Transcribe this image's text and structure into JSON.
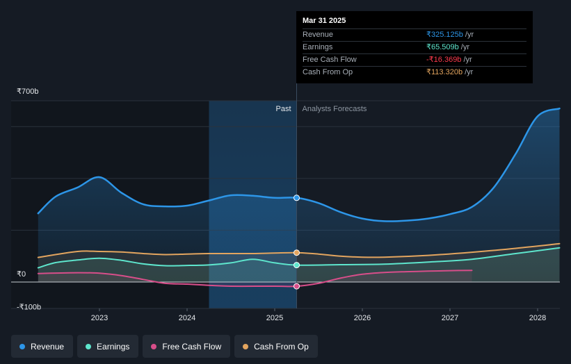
{
  "chart_data": {
    "type": "area",
    "y_unit": "₹ billions",
    "ylim": [
      -100,
      700
    ],
    "y_tick_labels": [
      {
        "value": 700,
        "label": "₹700b"
      },
      {
        "value": 0,
        "label": "₹0"
      },
      {
        "value": -100,
        "label": "-₹100b"
      }
    ],
    "xlim": [
      2022.3,
      2028.25
    ],
    "x_tick_labels": [
      {
        "value": 2023.0,
        "label": "2023"
      },
      {
        "value": 2024.0,
        "label": "2024"
      },
      {
        "value": 2025.0,
        "label": "2025"
      },
      {
        "value": 2026.0,
        "label": "2026"
      },
      {
        "value": 2027.0,
        "label": "2027"
      },
      {
        "value": 2028.0,
        "label": "2028"
      }
    ],
    "region_labels": {
      "past": "Past",
      "forecast": "Analysts Forecasts"
    },
    "highlight_range": [
      2024.25,
      2025.25
    ],
    "divider_x": 2025.25,
    "series": [
      {
        "name": "Revenue",
        "color": "#2d96e8",
        "points": [
          [
            2022.3,
            265
          ],
          [
            2022.5,
            330
          ],
          [
            2022.75,
            365
          ],
          [
            2023.0,
            405
          ],
          [
            2023.25,
            345
          ],
          [
            2023.5,
            300
          ],
          [
            2023.75,
            292
          ],
          [
            2024.0,
            295
          ],
          [
            2024.25,
            315
          ],
          [
            2024.5,
            335
          ],
          [
            2024.75,
            333
          ],
          [
            2025.0,
            325
          ],
          [
            2025.25,
            325.1
          ],
          [
            2025.5,
            305
          ],
          [
            2025.75,
            270
          ],
          [
            2026.0,
            245
          ],
          [
            2026.25,
            235
          ],
          [
            2026.5,
            237
          ],
          [
            2026.75,
            245
          ],
          [
            2027.0,
            262
          ],
          [
            2027.25,
            290
          ],
          [
            2027.5,
            365
          ],
          [
            2027.75,
            495
          ],
          [
            2028.0,
            640
          ],
          [
            2028.25,
            670
          ]
        ]
      },
      {
        "name": "Earnings",
        "color": "#5ee6cd",
        "points": [
          [
            2022.3,
            55
          ],
          [
            2022.5,
            75
          ],
          [
            2022.75,
            85
          ],
          [
            2023.0,
            92
          ],
          [
            2023.25,
            84
          ],
          [
            2023.5,
            70
          ],
          [
            2023.75,
            63
          ],
          [
            2024.0,
            64
          ],
          [
            2024.25,
            66
          ],
          [
            2024.5,
            74
          ],
          [
            2024.75,
            88
          ],
          [
            2025.0,
            74
          ],
          [
            2025.25,
            65.5
          ],
          [
            2025.75,
            67
          ],
          [
            2026.25,
            69
          ],
          [
            2026.75,
            77
          ],
          [
            2027.25,
            88
          ],
          [
            2027.75,
            110
          ],
          [
            2028.25,
            132
          ]
        ]
      },
      {
        "name": "Free Cash Flow",
        "color": "#d84e8a",
        "points": [
          [
            2022.3,
            33
          ],
          [
            2022.75,
            36
          ],
          [
            2023.0,
            34
          ],
          [
            2023.25,
            25
          ],
          [
            2023.5,
            10
          ],
          [
            2023.75,
            -5
          ],
          [
            2024.0,
            -8
          ],
          [
            2024.25,
            -13
          ],
          [
            2024.5,
            -16
          ],
          [
            2025.0,
            -16
          ],
          [
            2025.25,
            -16.4
          ],
          [
            2025.5,
            -5
          ],
          [
            2025.75,
            15
          ],
          [
            2026.0,
            30
          ],
          [
            2026.25,
            37
          ],
          [
            2026.5,
            40
          ],
          [
            2026.75,
            42
          ],
          [
            2027.0,
            44
          ],
          [
            2027.25,
            45
          ]
        ]
      },
      {
        "name": "Cash From Op",
        "color": "#e3a55f",
        "points": [
          [
            2022.3,
            95
          ],
          [
            2022.75,
            118
          ],
          [
            2023.0,
            118
          ],
          [
            2023.25,
            116
          ],
          [
            2023.5,
            110
          ],
          [
            2023.75,
            106
          ],
          [
            2024.0,
            108
          ],
          [
            2024.25,
            110
          ],
          [
            2024.5,
            110
          ],
          [
            2024.75,
            110
          ],
          [
            2025.0,
            112
          ],
          [
            2025.25,
            113.3
          ],
          [
            2025.5,
            108
          ],
          [
            2025.75,
            100
          ],
          [
            2026.0,
            96
          ],
          [
            2026.25,
            96
          ],
          [
            2026.75,
            103
          ],
          [
            2027.25,
            115
          ],
          [
            2027.75,
            130
          ],
          [
            2028.25,
            148
          ]
        ]
      }
    ]
  },
  "tooltip": {
    "date": "Mar 31 2025",
    "rows": [
      {
        "label": "Revenue",
        "value": "₹325.125b",
        "unit": "/yr",
        "color": "#2d96e8"
      },
      {
        "label": "Earnings",
        "value": "₹65.509b",
        "unit": "/yr",
        "color": "#5ee6cd"
      },
      {
        "label": "Free Cash Flow",
        "value": "-₹16.369b",
        "unit": "/yr",
        "color": "#ff3b4e"
      },
      {
        "label": "Cash From Op",
        "value": "₹113.320b",
        "unit": "/yr",
        "color": "#e3a55f"
      }
    ]
  },
  "legend": [
    {
      "label": "Revenue",
      "color": "#2d96e8"
    },
    {
      "label": "Earnings",
      "color": "#5ee6cd"
    },
    {
      "label": "Free Cash Flow",
      "color": "#d84e8a"
    },
    {
      "label": "Cash From Op",
      "color": "#e3a55f"
    }
  ]
}
